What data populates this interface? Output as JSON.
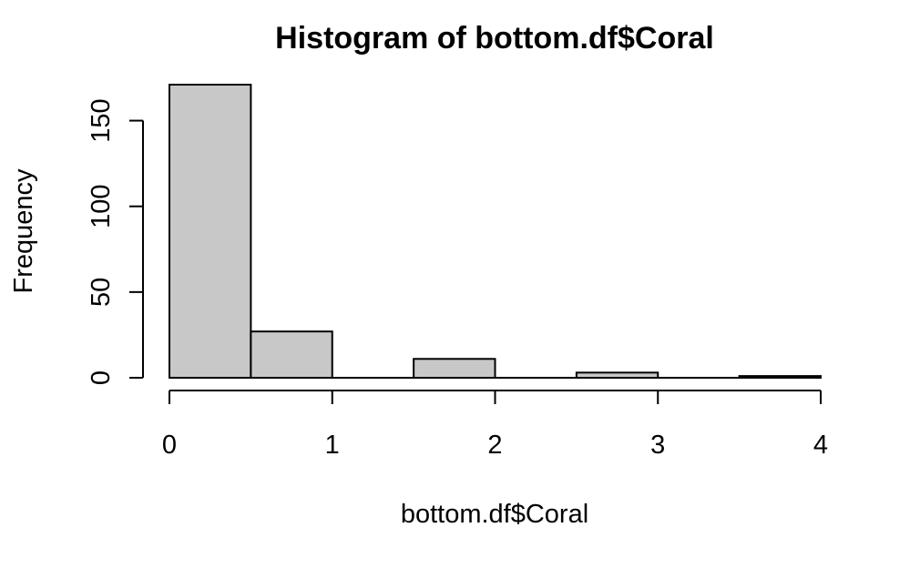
{
  "chart_data": {
    "type": "bar",
    "title": "Histogram of bottom.df$Coral",
    "xlabel": "bottom.df$Coral",
    "ylabel": "Frequency",
    "bins": [
      {
        "start": 0.0,
        "end": 0.5,
        "count": 171
      },
      {
        "start": 0.5,
        "end": 1.0,
        "count": 27
      },
      {
        "start": 1.0,
        "end": 1.5,
        "count": 0
      },
      {
        "start": 1.5,
        "end": 2.0,
        "count": 11
      },
      {
        "start": 2.0,
        "end": 2.5,
        "count": 0
      },
      {
        "start": 2.5,
        "end": 3.0,
        "count": 3
      },
      {
        "start": 3.0,
        "end": 3.5,
        "count": 0
      },
      {
        "start": 3.5,
        "end": 4.0,
        "count": 1
      }
    ],
    "xlim": [
      0,
      4
    ],
    "ylim": [
      0,
      171
    ],
    "x_ticks": [
      0,
      1,
      2,
      3,
      4
    ],
    "y_ticks": [
      0,
      50,
      100,
      150
    ],
    "x_tick_labels": [
      "0",
      "1",
      "2",
      "3",
      "4"
    ],
    "y_tick_labels": [
      "0",
      "50",
      "100",
      "150"
    ],
    "bar_color": "#c8c8c8",
    "grid": false
  }
}
